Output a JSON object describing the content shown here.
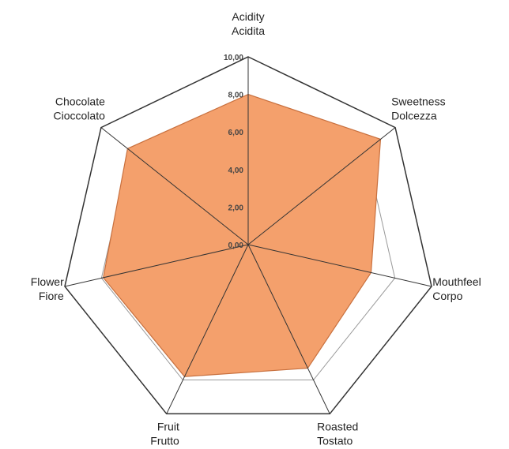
{
  "chart_data": {
    "type": "radar",
    "categories": [
      [
        "Acidity",
        "Acidita"
      ],
      [
        "Sweetness",
        "Dolcezza"
      ],
      [
        "Mouthfeel",
        "Corpo"
      ],
      [
        "Roasted",
        "Tostato"
      ],
      [
        "Fruit",
        "Frutto"
      ],
      [
        "Flower",
        "Fiore"
      ],
      [
        "Chocolate",
        "Cioccolato"
      ]
    ],
    "values": [
      8,
      9,
      6.7,
      7.3,
      7.8,
      7.9,
      8.2
    ],
    "color": "#f4a06c",
    "ylim": [
      0,
      10
    ],
    "yticks": [
      {
        "value": 0,
        "label": "0,00"
      },
      {
        "value": 2,
        "label": "2,00"
      },
      {
        "value": 4,
        "label": "4,00"
      },
      {
        "value": 6,
        "label": "6,00"
      },
      {
        "value": 8,
        "label": "8,00"
      },
      {
        "value": 10,
        "label": "10,00"
      }
    ],
    "grid": true
  }
}
